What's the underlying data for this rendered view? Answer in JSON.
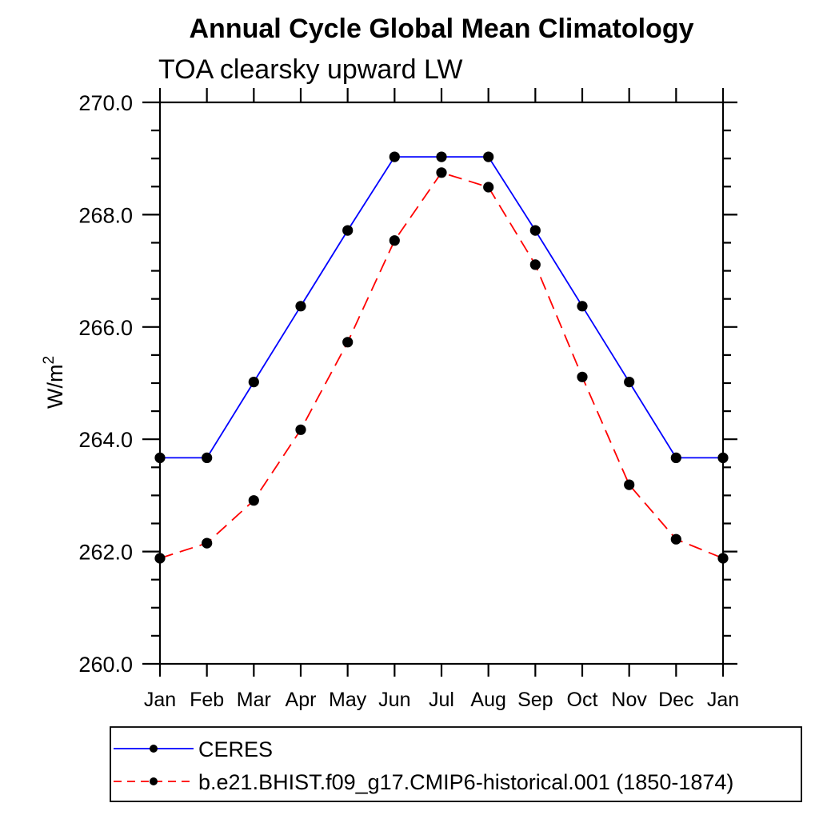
{
  "chart_data": {
    "type": "line",
    "title": "Annual Cycle Global Mean Climatology",
    "subtitle": "TOA clearsky upward LW",
    "ylabel": {
      "base": "W/m",
      "sup": "2"
    },
    "categories": [
      "Jan",
      "Feb",
      "Mar",
      "Apr",
      "May",
      "Jun",
      "Jul",
      "Aug",
      "Sep",
      "Oct",
      "Nov",
      "Dec",
      "Jan"
    ],
    "y_axis": {
      "min": 260.0,
      "max": 270.0,
      "major_step": 2.0,
      "minor_step": 0.5,
      "tick_labels": [
        "270.0",
        "268.0",
        "266.0",
        "264.0",
        "262.0",
        "260.0"
      ]
    },
    "grid": false,
    "legend_position": "bottom-left",
    "series": [
      {
        "name": "CERES",
        "color": "#0000ff",
        "style": "solid",
        "marker": "filled-circle",
        "marker_color": "#000000",
        "values": [
          263.67,
          263.67,
          265.02,
          266.37,
          267.72,
          269.03,
          269.03,
          269.03,
          267.72,
          266.37,
          265.02,
          263.67,
          263.67
        ]
      },
      {
        "name": "b.e21.BHIST.f09_g17.CMIP6-historical.001 (1850-1874)",
        "color": "#ff0000",
        "style": "dashed",
        "marker": "filled-circle",
        "marker_color": "#000000",
        "values": [
          261.88,
          262.15,
          262.91,
          264.17,
          265.73,
          267.54,
          268.75,
          268.49,
          267.11,
          265.11,
          263.19,
          262.22,
          261.88
        ]
      }
    ]
  }
}
